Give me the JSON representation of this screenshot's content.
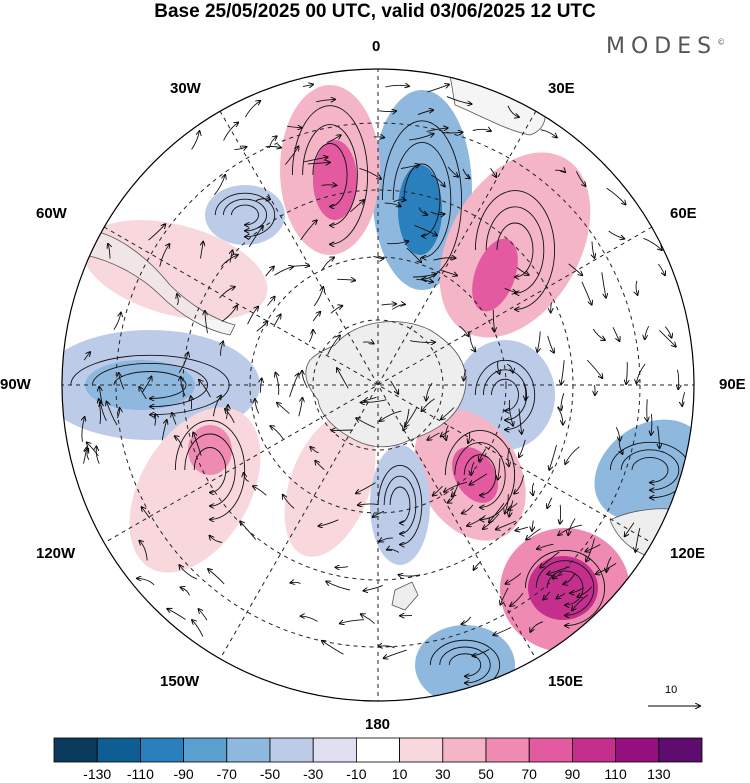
{
  "title": "Base 25/05/2025 00 UTC, valid 03/06/2025 12 UTC",
  "brand": "MODES",
  "brand_mark": "©",
  "longitude_labels": [
    "0",
    "30E",
    "60E",
    "90E",
    "120E",
    "150E",
    "180",
    "150W",
    "120W",
    "90W",
    "60W",
    "30W"
  ],
  "reference_vector": "10",
  "colorbar": {
    "ticks": [
      "-130",
      "-110",
      "-90",
      "-70",
      "-50",
      "-30",
      "-10",
      "10",
      "30",
      "50",
      "70",
      "90",
      "110",
      "130"
    ],
    "colors": [
      "#0b3b5c",
      "#0e5e93",
      "#2a80bd",
      "#5a9fd0",
      "#8fb8df",
      "#bccbe8",
      "#e0e0f2",
      "#ffffff",
      "#f8d8dc",
      "#f4b6c6",
      "#ef8bb2",
      "#e35aa0",
      "#c42f8e",
      "#960f7e",
      "#5e0c6e"
    ]
  },
  "map": {
    "projection": "polar-stereographic-south",
    "landmass": "Antarctica",
    "land_color": "#eeeeee",
    "grid_style": "dashed",
    "anomaly_blobs": [
      {
        "region": "south-atlantic-0",
        "level": -70
      },
      {
        "region": "south-atlantic-20W",
        "level": 70
      },
      {
        "region": "south-atlantic-40W",
        "level": -50
      },
      {
        "region": "southern-africa",
        "level": 70
      },
      {
        "region": "drake-passage",
        "level": 50
      },
      {
        "region": "southeast-pacific-90W",
        "level": -50
      },
      {
        "region": "southeast-pacific-110W",
        "level": 50
      },
      {
        "region": "indian-ocean-90E",
        "level": -30
      },
      {
        "region": "southern-ocean-135E",
        "level": 70
      },
      {
        "region": "southern-australia",
        "level": -50
      },
      {
        "region": "tasman-sea",
        "level": 110
      },
      {
        "region": "ross-sea-180",
        "level": -30
      },
      {
        "region": "new-zealand-south",
        "level": -50
      }
    ]
  }
}
